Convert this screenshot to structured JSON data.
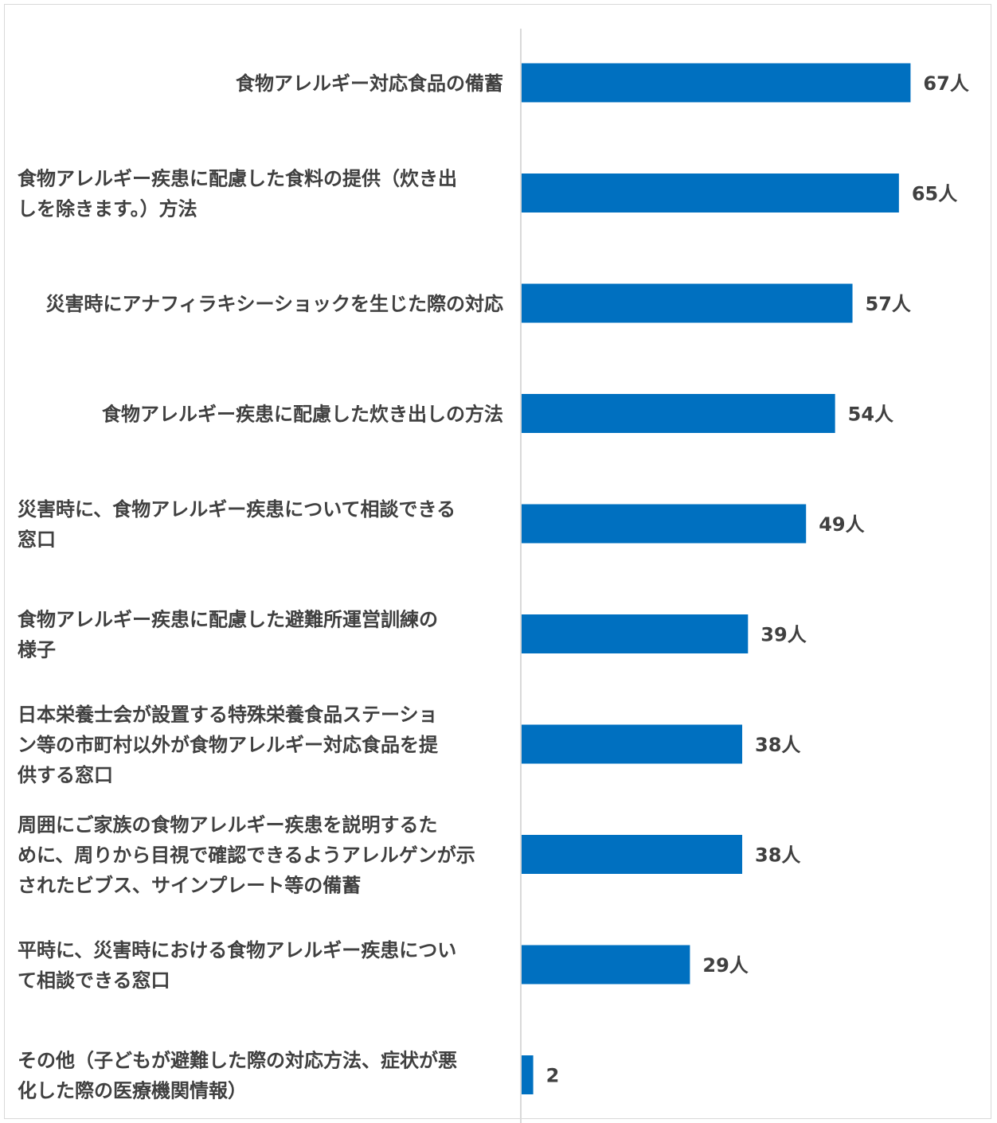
{
  "chart_data": {
    "type": "bar",
    "orientation": "horizontal",
    "categories": [
      "食物アレルギー対応食品の備蓄",
      "食物アレルギー疾患に配慮した食料の提供（炊き出しを除きます。）方法",
      "災害時にアナフィラキシーショックを生じた際の対応",
      "食物アレルギー疾患に配慮した炊き出しの方法",
      "災害時に、食物アレルギー疾患について相談できる窓口",
      "食物アレルギー疾患に配慮した避難所運営訓練の様子",
      "日本栄養士会が設置する特殊栄養食品ステーション等の市町村以外が食物アレルギー対応食品を提供する窓口",
      "周囲にご家族の食物アレルギー疾患を説明するために、周りから目視で確認できるようアレルゲンが示されたビブス、サインプレート等の備蓄",
      "平時に、災害時における食物アレルギー疾患について相談できる窓口",
      "その他（子どもが避難した際の対応方法、症状が悪化した際の医療機関情報）"
    ],
    "category_lines": [
      [
        "食物アレルギー対応食品の備蓄"
      ],
      [
        "食物アレルギー疾患に配慮した食料の提供（炊き出",
        "しを除きます。）方法"
      ],
      [
        "災害時にアナフィラキシーショックを生じた際の対応"
      ],
      [
        "食物アレルギー疾患に配慮した炊き出しの方法"
      ],
      [
        "災害時に、食物アレルギー疾患について相談できる",
        "窓口"
      ],
      [
        "食物アレルギー疾患に配慮した避難所運営訓練の",
        "様子"
      ],
      [
        "日本栄養士会が設置する特殊栄養食品ステーショ",
        "ン等の市町村以外が食物アレルギー対応食品を提",
        "供する窓口"
      ],
      [
        "周囲にご家族の食物アレルギー疾患を説明するた",
        "めに、周りから目視で確認できるようアレルゲンが示",
        "されたビブス、サインプレート等の備蓄"
      ],
      [
        "平時に、災害時における食物アレルギー疾患につい",
        "て相談できる窓口"
      ],
      [
        "その他（子どもが避難した際の対応方法、症状が悪",
        "化した際の医療機関情報）"
      ]
    ],
    "values": [
      67,
      65,
      57,
      54,
      49,
      39,
      38,
      38,
      29,
      2
    ],
    "value_labels": [
      "67人",
      "65人",
      "57人",
      "54人",
      "49人",
      "39人",
      "38人",
      "38人",
      "29人",
      "2"
    ],
    "bar_color": "#0070C0",
    "axis_line_color": "#d9d9d9",
    "text_color": "#404040",
    "title": "",
    "xlabel": "",
    "ylabel": "",
    "grid": false,
    "legend": "none"
  }
}
